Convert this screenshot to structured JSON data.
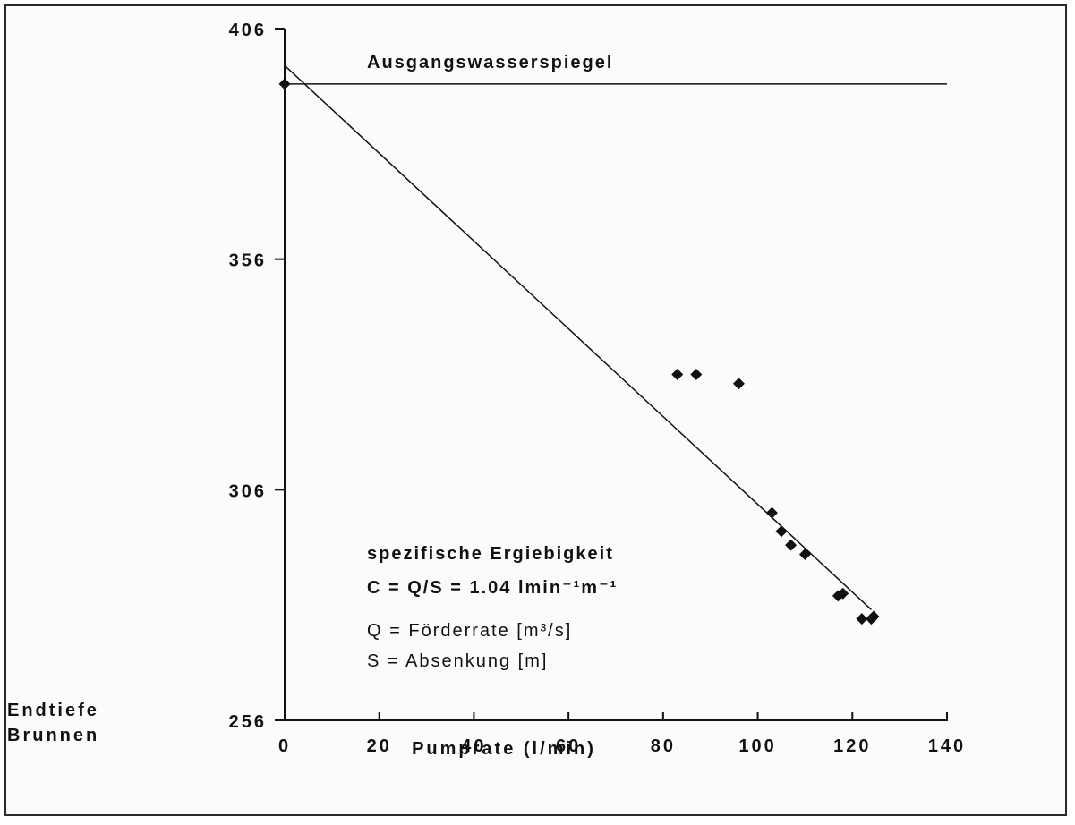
{
  "chart_data": {
    "type": "scatter",
    "title": "",
    "xlabel": "Pumprate (l/min)",
    "ylabel": "",
    "xlim": [
      0,
      140
    ],
    "ylim": [
      256,
      406
    ],
    "x_ticks": [
      0,
      20,
      40,
      60,
      80,
      100,
      120,
      140
    ],
    "y_ticks": [
      256,
      306,
      356,
      406
    ],
    "y_bottom_label": [
      "Endtiefe",
      "Brunnen"
    ],
    "grid": false,
    "series": [
      {
        "type": "scatter",
        "points": [
          {
            "x": 0,
            "y": 394
          },
          {
            "x": 83,
            "y": 331
          },
          {
            "x": 87,
            "y": 331
          },
          {
            "x": 96,
            "y": 329
          },
          {
            "x": 103,
            "y": 301
          },
          {
            "x": 105,
            "y": 297
          },
          {
            "x": 107,
            "y": 294
          },
          {
            "x": 110,
            "y": 292
          },
          {
            "x": 117,
            "y": 283
          },
          {
            "x": 118,
            "y": 283.5
          },
          {
            "x": 122,
            "y": 278
          },
          {
            "x": 124,
            "y": 278
          },
          {
            "x": 124.5,
            "y": 278.5
          }
        ]
      },
      {
        "type": "line",
        "name": "Ausgangswasserspiegel",
        "points": [
          {
            "x": 0,
            "y": 394
          },
          {
            "x": 140,
            "y": 394
          }
        ]
      },
      {
        "type": "line",
        "points": [
          {
            "x": 0,
            "y": 398
          },
          {
            "x": 124,
            "y": 280
          }
        ]
      }
    ],
    "annotations": {
      "baseline": "Ausgangswasserspiegel",
      "title_line": "spezifische Ergiebigkeit",
      "formula": "C = Q/S = 1.04 lmin⁻¹m⁻¹",
      "q_def": "Q = Förderrate [m³/s]",
      "s_def": "S = Absenkung [m]"
    }
  },
  "colors": {
    "ink": "#111111",
    "frame": "#2a2a2a",
    "background": "#fbfbfb"
  }
}
